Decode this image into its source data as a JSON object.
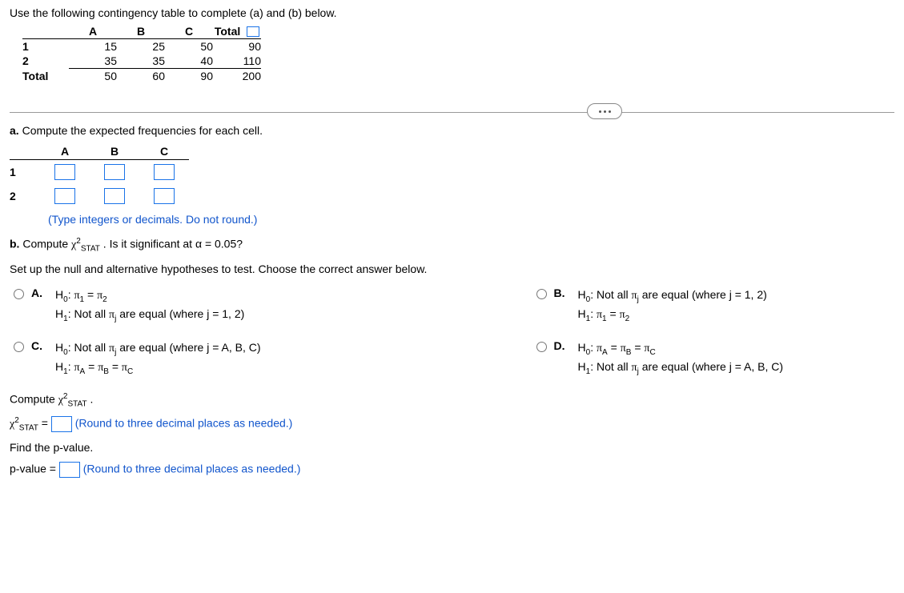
{
  "intro": "Use the following contingency table to complete (a) and (b) below.",
  "table": {
    "cols": [
      "A",
      "B",
      "C",
      "Total"
    ],
    "rows": [
      {
        "label": "1",
        "cells": [
          "15",
          "25",
          "50",
          "90"
        ]
      },
      {
        "label": "2",
        "cells": [
          "35",
          "35",
          "40",
          "110"
        ]
      },
      {
        "label": "Total",
        "cells": [
          "50",
          "60",
          "90",
          "200"
        ]
      }
    ]
  },
  "partA": {
    "label": "a. Compute the expected frequencies for each cell.",
    "cols": [
      "A",
      "B",
      "C"
    ],
    "rowlabels": [
      "1",
      "2"
    ],
    "hint": "(Type integers or decimals. Do not round.)"
  },
  "partB": {
    "prefix": "b. Compute ",
    "stat": "χ",
    "statSup": "2",
    "statSub": "STAT",
    "mid": ". Is it significant at ",
    "alphaLabel": "α",
    "alphaEq": " = 0.05?",
    "hypPrompt": "Set up the null and alternative hypotheses to test. Choose the correct answer below."
  },
  "choices": {
    "A": {
      "h0": "H₀: π₁ = π₂",
      "h1": "H₁: Not all πⱼ are equal (where j = 1, 2)"
    },
    "B": {
      "h0": "H₀: Not all πⱼ are equal (where j = 1, 2)",
      "h1": "H₁: π₁ = π₂"
    },
    "C": {
      "h0": "H₀: Not all πⱼ are equal (where j = A, B, C)",
      "h1": "H₁: π_A = π_B = π_C"
    },
    "D": {
      "h0": "H₀: π_A = π_B = π_C",
      "h1": "H₁: Not all πⱼ are equal (where j = A, B, C)"
    }
  },
  "computeLabel": "Compute ",
  "chiEq": " = ",
  "roundHint3": "(Round to three decimal places as needed.)",
  "findP": "Find the p-value.",
  "pvalueLabel": "p-value = "
}
